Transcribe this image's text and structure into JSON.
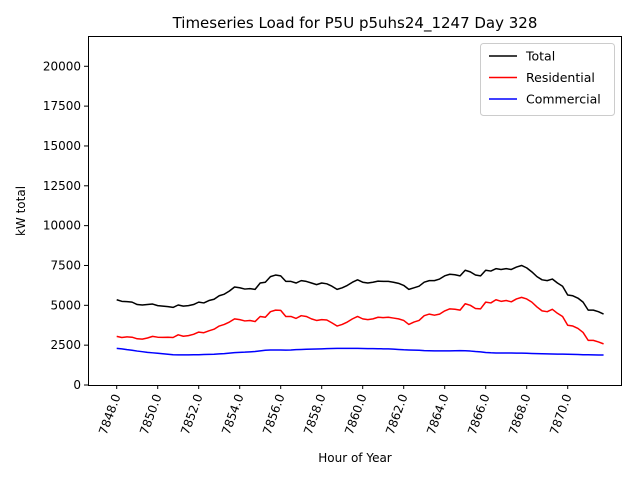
{
  "chart_data": {
    "type": "line",
    "title": "Timeseries Load for P5U p5uhs24_1247  Day 328",
    "xlabel": "Hour of Year",
    "ylabel": "kW total",
    "xlim": [
      7846.6,
      7872.6
    ],
    "ylim": [
      0,
      21900
    ],
    "x_ticks": [
      7848,
      7850,
      7852,
      7854,
      7856,
      7858,
      7860,
      7862,
      7864,
      7866,
      7868,
      7870
    ],
    "x_tick_labels": [
      "7848.0",
      "7850.0",
      "7852.0",
      "7854.0",
      "7856.0",
      "7858.0",
      "7860.0",
      "7862.0",
      "7864.0",
      "7866.0",
      "7868.0",
      "7870.0"
    ],
    "y_ticks": [
      0,
      2500,
      5000,
      7500,
      10000,
      12500,
      15000,
      17500,
      20000
    ],
    "y_tick_labels": [
      "0",
      "2500",
      "5000",
      "7500",
      "10000",
      "12500",
      "15000",
      "17500",
      "20000"
    ],
    "x_start": 7848.0,
    "x_step": 0.25,
    "legend_position": "top-right",
    "grid": false,
    "series": [
      {
        "name": "Total",
        "color": "#000000",
        "values": [
          5350,
          5250,
          5230,
          5200,
          5050,
          5020,
          5050,
          5080,
          4980,
          4950,
          4920,
          4870,
          5020,
          4950,
          4980,
          5050,
          5200,
          5150,
          5300,
          5380,
          5600,
          5700,
          5900,
          6150,
          6100,
          6020,
          6050,
          6000,
          6400,
          6450,
          6800,
          6900,
          6850,
          6500,
          6500,
          6400,
          6550,
          6500,
          6400,
          6300,
          6400,
          6350,
          6200,
          6000,
          6100,
          6250,
          6450,
          6600,
          6450,
          6400,
          6450,
          6520,
          6500,
          6500,
          6450,
          6380,
          6250,
          6000,
          6100,
          6200,
          6450,
          6550,
          6550,
          6650,
          6850,
          6950,
          6920,
          6850,
          7200,
          7100,
          6900,
          6850,
          7200,
          7150,
          7300,
          7250,
          7300,
          7250,
          7400,
          7500,
          7350,
          7100,
          6800,
          6600,
          6550,
          6650,
          6400,
          6200,
          5650,
          5600,
          5450,
          5200,
          4700,
          4700,
          4600,
          4450
        ]
      },
      {
        "name": "Residential",
        "color": "#ff0000",
        "values": [
          3050,
          2980,
          3020,
          3000,
          2900,
          2880,
          2950,
          3050,
          3000,
          2990,
          3000,
          2980,
          3150,
          3060,
          3100,
          3180,
          3320,
          3280,
          3400,
          3500,
          3700,
          3800,
          3950,
          4150,
          4100,
          4020,
          4050,
          3980,
          4300,
          4250,
          4600,
          4700,
          4680,
          4300,
          4300,
          4180,
          4350,
          4300,
          4150,
          4050,
          4100,
          4080,
          3900,
          3700,
          3800,
          3950,
          4150,
          4300,
          4150,
          4100,
          4150,
          4250,
          4230,
          4250,
          4200,
          4150,
          4050,
          3800,
          3950,
          4050,
          4350,
          4450,
          4380,
          4450,
          4650,
          4780,
          4750,
          4700,
          5100,
          5000,
          4800,
          4780,
          5200,
          5150,
          5350,
          5250,
          5300,
          5220,
          5400,
          5500,
          5400,
          5200,
          4900,
          4650,
          4600,
          4750,
          4500,
          4300,
          3750,
          3700,
          3550,
          3300,
          2800,
          2800,
          2700,
          2580
        ]
      },
      {
        "name": "Commercial",
        "color": "#0000ff",
        "values": [
          2300,
          2270,
          2220,
          2180,
          2130,
          2090,
          2050,
          2020,
          1990,
          1960,
          1930,
          1900,
          1890,
          1890,
          1890,
          1895,
          1900,
          1910,
          1920,
          1930,
          1950,
          1970,
          2000,
          2030,
          2050,
          2060,
          2080,
          2100,
          2140,
          2180,
          2200,
          2200,
          2200,
          2190,
          2200,
          2220,
          2230,
          2240,
          2250,
          2260,
          2270,
          2280,
          2290,
          2300,
          2300,
          2300,
          2300,
          2295,
          2290,
          2285,
          2280,
          2275,
          2270,
          2265,
          2250,
          2230,
          2210,
          2200,
          2190,
          2180,
          2160,
          2150,
          2140,
          2140,
          2140,
          2145,
          2150,
          2155,
          2150,
          2130,
          2100,
          2080,
          2040,
          2020,
          2010,
          2010,
          2010,
          2010,
          2000,
          2000,
          1990,
          1980,
          1970,
          1960,
          1950,
          1945,
          1940,
          1935,
          1930,
          1920,
          1910,
          1900,
          1895,
          1890,
          1885,
          1880
        ]
      }
    ]
  }
}
